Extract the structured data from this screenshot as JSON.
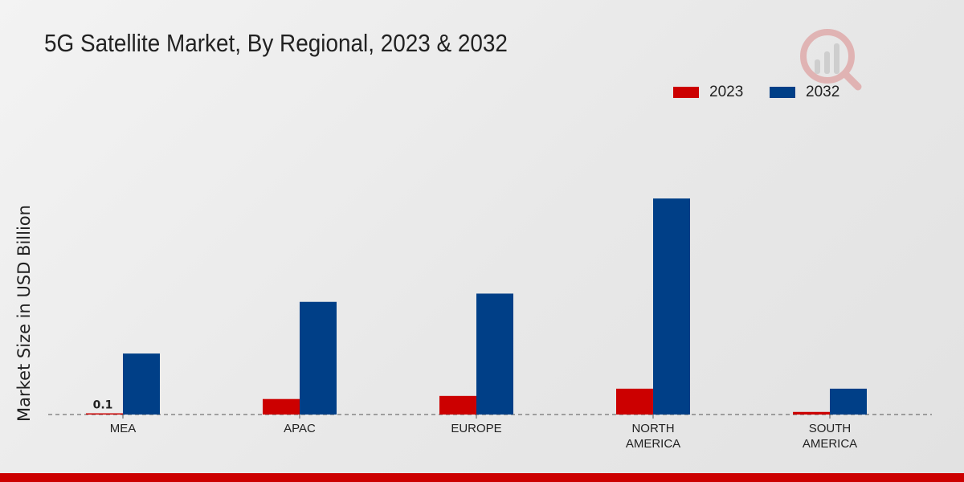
{
  "chart_data": {
    "type": "bar",
    "title": "5G Satellite Market, By Regional, 2023 & 2032",
    "xlabel": "",
    "ylabel": "Market Size in USD Billion",
    "categories": [
      [
        "MEA"
      ],
      [
        "APAC"
      ],
      [
        "EUROPE"
      ],
      [
        "NORTH",
        "AMERICA"
      ],
      [
        "SOUTH",
        "AMERICA"
      ]
    ],
    "series": [
      {
        "name": "2023",
        "color": "#cc0000",
        "values": [
          0.1,
          1.5,
          1.8,
          2.5,
          0.25
        ]
      },
      {
        "name": "2032",
        "color": "#003f87",
        "values": [
          5.9,
          10.9,
          11.7,
          20.9,
          2.5
        ]
      }
    ],
    "data_labels": [
      {
        "series": 0,
        "index": 0,
        "text": "0.1"
      }
    ],
    "ylim": [
      0,
      30
    ],
    "grid": false,
    "legend_position": "top-right"
  }
}
